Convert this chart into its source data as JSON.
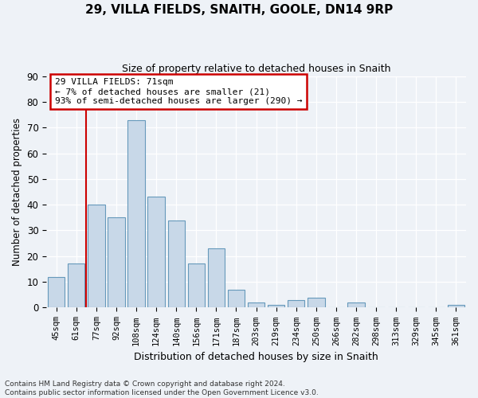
{
  "title": "29, VILLA FIELDS, SNAITH, GOOLE, DN14 9RP",
  "subtitle": "Size of property relative to detached houses in Snaith",
  "xlabel": "Distribution of detached houses by size in Snaith",
  "ylabel": "Number of detached properties",
  "categories": [
    "45sqm",
    "61sqm",
    "77sqm",
    "92sqm",
    "108sqm",
    "124sqm",
    "140sqm",
    "156sqm",
    "171sqm",
    "187sqm",
    "203sqm",
    "219sqm",
    "234sqm",
    "250sqm",
    "266sqm",
    "282sqm",
    "298sqm",
    "313sqm",
    "329sqm",
    "345sqm",
    "361sqm"
  ],
  "values": [
    12,
    17,
    40,
    35,
    73,
    43,
    34,
    17,
    23,
    7,
    2,
    1,
    3,
    4,
    0,
    2,
    0,
    0,
    0,
    0,
    1
  ],
  "bar_color": "#c8d8e8",
  "bar_edge_color": "#6699bb",
  "ylim": [
    0,
    90
  ],
  "yticks": [
    0,
    10,
    20,
    30,
    40,
    50,
    60,
    70,
    80,
    90
  ],
  "property_line_x": 1.5,
  "annotation_text": "29 VILLA FIELDS: 71sqm\n← 7% of detached houses are smaller (21)\n93% of semi-detached houses are larger (290) →",
  "annotation_box_color": "#ffffff",
  "annotation_box_edge": "#cc0000",
  "property_line_color": "#cc0000",
  "footer": "Contains HM Land Registry data © Crown copyright and database right 2024.\nContains public sector information licensed under the Open Government Licence v3.0.",
  "background_color": "#eef2f7",
  "grid_color": "#ffffff"
}
